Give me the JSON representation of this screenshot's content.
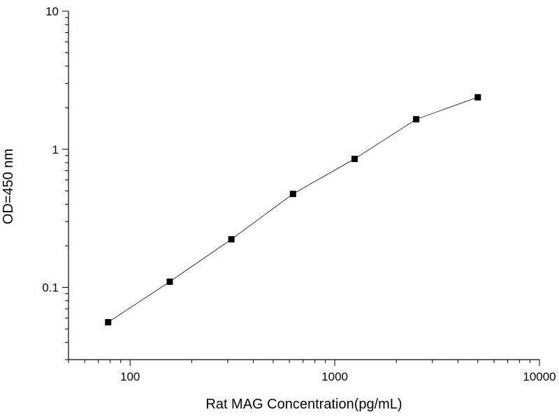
{
  "chart_data": {
    "type": "scatter",
    "title": "",
    "xlabel": "Rat MAG Concentration(pg/mL)",
    "ylabel": "OD=450 nm",
    "x_scale": "log",
    "y_scale": "log",
    "xlim": [
      50,
      10000
    ],
    "ylim": [
      0.03,
      10
    ],
    "x_ticks": [
      100,
      1000,
      10000
    ],
    "x_tick_labels": [
      "100",
      "1000",
      "10000"
    ],
    "y_ticks": [
      0.1,
      1,
      10
    ],
    "y_tick_labels": [
      "0.1",
      "1",
      "10"
    ],
    "grid": false,
    "legend": "none",
    "series": [
      {
        "x": [
          78.125,
          156.25,
          312.5,
          625,
          1250,
          2500,
          5000
        ],
        "y": [
          0.056,
          0.11,
          0.223,
          0.475,
          0.852,
          1.65,
          2.38
        ],
        "marker": "square",
        "color": "#000000",
        "connected": true
      }
    ]
  }
}
